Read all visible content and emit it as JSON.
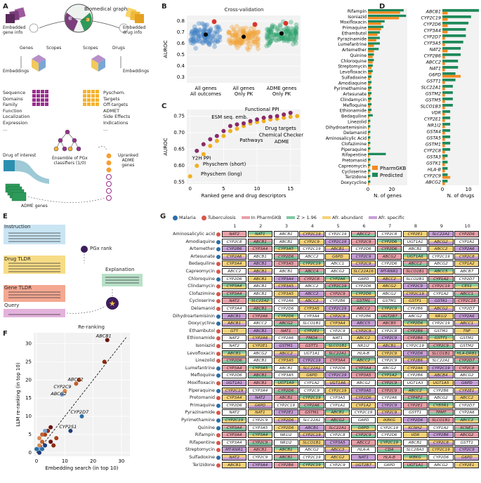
{
  "panel_labels": {
    "a": "A",
    "b": "B",
    "c": "C",
    "d": "D",
    "e": "E",
    "f": "F",
    "g": "G"
  },
  "panel_a": {
    "biomedical_graph": "Biomedical graph",
    "embedded_gene_info": "Embedded\ngene info",
    "embedded_drug_info": "Embedded\ndrug info",
    "genes": "Genes",
    "scopes_left": "Scopes",
    "scopes_right": "Scopes",
    "drugs": "Drugs",
    "embeddings_left": "Embeddings",
    "embeddings_right": "Embeddings",
    "gene_features": [
      "Sequence",
      "Domains",
      "Family",
      "Function",
      "Localization",
      "Expression",
      "..."
    ],
    "drug_features": [
      "Pyschem.",
      "Targets",
      "Off-targets",
      "ADMET",
      "Side Effects",
      "Indications",
      "..."
    ],
    "drug_of_interest": "Drug of interest",
    "ensemble": "Ensemble of PGx\nclassifiers (1/0)",
    "upranked": "Upranked\nADME\ngenes",
    "adme_genes": "ADME genes"
  },
  "panel_e": {
    "instruction": "Instruction",
    "drug_tldr": "Drug TLDR",
    "gene_tldr": "Gene TLDR",
    "query": "Query",
    "pgx_rank": "PGx rank",
    "explanation": "Explanation"
  },
  "panel_b": {
    "chart_data": {
      "type": "scatter",
      "title": "Cross-validation",
      "ylabel": "AUROC",
      "ylim": [
        0.25,
        0.85
      ],
      "yticks": [
        0.3,
        0.4,
        0.5,
        0.6,
        0.7,
        0.8
      ],
      "categories": [
        "All genes\nAll outcomes",
        "All genes\nOnly PK",
        "ADME genes\nOnly PK"
      ],
      "medians": [
        0.68,
        0.66,
        0.69
      ],
      "colors": [
        "#3b7dc4",
        "#f0a030",
        "#2ca06a"
      ]
    }
  },
  "panel_c": {
    "chart_data": {
      "type": "scatter",
      "xlabel": "Ranked gene and drug descriptors",
      "ylabel": "AUROC",
      "xlim": [
        -0.5,
        16.5
      ],
      "ylim": [
        0.545,
        0.77
      ],
      "xticks": [
        0,
        5,
        10,
        15
      ],
      "yticks": [
        0.55,
        0.6,
        0.65,
        0.7,
        0.75
      ],
      "purple_x": [
        1,
        2,
        3,
        4,
        5,
        6,
        7,
        8,
        9,
        10,
        11,
        12,
        13,
        14,
        15
      ],
      "purple_y": [
        0.645,
        0.665,
        0.68,
        0.69,
        0.705,
        0.72,
        0.725,
        0.728,
        0.735,
        0.74,
        0.745,
        0.748,
        0.75,
        0.755,
        0.76
      ],
      "orange_x": [
        0,
        1,
        2,
        3,
        4,
        5,
        6,
        7,
        8,
        9,
        10,
        11,
        12,
        13,
        14,
        15,
        16
      ],
      "orange_y": [
        0.568,
        0.6,
        0.635,
        0.66,
        0.675,
        0.69,
        0.705,
        0.712,
        0.72,
        0.728,
        0.732,
        0.735,
        0.74,
        0.742,
        0.745,
        0.748,
        0.75
      ],
      "annotations": [
        "Functional PPI",
        "ESM seq. emb.",
        "Drug targets",
        "Chemical Checker",
        "Pathways",
        "ADME",
        "Y2H PPI",
        "Physchem (short)",
        "Physchem (long)"
      ]
    }
  },
  "panel_d": {
    "chart_data": {
      "type": "bar",
      "legend": [
        "PharmGKB",
        "Predicted"
      ],
      "colors": [
        "#f28a1e",
        "#1e8a5a"
      ],
      "left_xlabel": "N. of genes",
      "right_xlabel": "N. of drugs",
      "left_xticks": [
        0,
        20
      ],
      "right_xticks": [
        0,
        10
      ],
      "left_xmax": 33,
      "right_xmax": 14,
      "drugs": [
        "Rifampin",
        "Isoniazid",
        "Moxifloxacin",
        "Primaquine",
        "Ethambutol",
        "Pyrazinamide",
        "Lumefantrine",
        "Artemether",
        "Quinine",
        "Chloroquine",
        "Streptomycin",
        "Levofloxacin",
        "Sulfadoxine",
        "Amodiaquine",
        "Pyrimethamine",
        "Artesunate",
        "Clindamycin",
        "Mefloquine",
        "Ethionamide",
        "Bedaquiline",
        "Linezolid",
        "Dihydroartemisinin",
        "Delamanid",
        "Aminosalicylic Acid",
        "Clofazimine",
        "Piperaquine",
        "Rifapentine",
        "Pretomanid",
        "Capreomycin",
        "Cycloserine",
        "Terizidone",
        "Doxycycline"
      ],
      "drug_pharmgkb": [
        27,
        26,
        11,
        11,
        8,
        7,
        5,
        5,
        4,
        4,
        3,
        3,
        2,
        2,
        2,
        2,
        2,
        2,
        2,
        1,
        1,
        1,
        1,
        1,
        1,
        1,
        1,
        1,
        1,
        1,
        1,
        1
      ],
      "drug_predicted": [
        30,
        32,
        14,
        13,
        10,
        10,
        10,
        9,
        5,
        5,
        4,
        4,
        3,
        3,
        3,
        3,
        3,
        3,
        3,
        4,
        2,
        2,
        2,
        2,
        2,
        2,
        15,
        2,
        2,
        2,
        2,
        2
      ],
      "genes": [
        "ABCB1",
        "CYP2C19",
        "CYP2D6",
        "CYP3A4",
        "CYP2D7",
        "CYP3A5",
        "NAT2",
        "CYP2B6",
        "ABCC2",
        "NAT1",
        "G6PD",
        "GSTT1",
        "SLC22A1",
        "GSTM2",
        "GSTM5",
        "SLCO1B3",
        "VDR",
        "CYP2E1",
        "NR1I2",
        "GSTA4",
        "GSTA5",
        "GSTM1",
        "CYP2C8",
        "GSTA3",
        "GSTK1",
        "HLA-B",
        "CYP2C9",
        "ABCG2"
      ],
      "gene_pharmgkb": [
        2,
        2,
        2,
        2,
        1,
        1,
        2,
        1,
        1,
        1,
        7,
        1,
        1,
        1,
        1,
        1,
        1,
        1,
        1,
        1,
        1,
        1,
        1,
        1,
        1,
        1,
        3,
        1
      ],
      "gene_predicted": [
        14,
        11,
        10,
        9,
        9,
        8,
        7,
        7,
        6,
        6,
        5,
        5,
        4,
        4,
        4,
        4,
        3,
        3,
        3,
        3,
        3,
        3,
        3,
        2,
        2,
        2,
        2,
        2
      ]
    }
  },
  "panel_f": {
    "chart_data": {
      "type": "scatter",
      "title": "Re-ranking",
      "xlabel": "Embedding search (in top 10)",
      "ylabel": "LLM re-ranking (in top 10)",
      "xlim": [
        -1,
        33
      ],
      "ylim": [
        -1,
        33
      ],
      "xticks": [
        0,
        10,
        20,
        30
      ],
      "yticks": [
        0,
        5,
        10,
        15,
        20,
        25,
        30
      ],
      "points": [
        [
          25,
          31
        ],
        [
          24,
          25
        ],
        [
          15,
          20
        ],
        [
          14,
          19
        ],
        [
          10,
          17
        ],
        [
          9,
          16
        ],
        [
          16,
          10
        ],
        [
          12,
          6
        ],
        [
          5,
          7
        ],
        [
          4,
          6
        ],
        [
          3,
          5
        ],
        [
          2,
          3
        ],
        [
          1,
          2
        ],
        [
          1,
          1
        ],
        [
          2,
          1
        ],
        [
          3,
          2
        ],
        [
          5,
          3
        ],
        [
          6,
          2
        ],
        [
          7,
          4
        ],
        [
          2,
          5
        ],
        [
          1,
          4
        ],
        [
          3,
          6
        ],
        [
          0,
          1
        ],
        [
          1,
          0
        ]
      ],
      "labels": [
        [
          "ABCB1",
          25,
          31
        ],
        [
          "ABCC2",
          15,
          19
        ],
        [
          "CYP2C9",
          10,
          17
        ],
        [
          "ABCG2",
          9,
          15
        ],
        [
          "CYP2D7",
          16,
          10
        ],
        [
          "CYP2S1",
          12,
          6
        ]
      ]
    }
  },
  "panel_g": {
    "legend": [
      "Malaria",
      "Tuberculosis",
      "In PharmGKB",
      "Z > 1.96",
      "Afr. abundant",
      "Afr. specific"
    ],
    "columns": [
      "1",
      "2",
      "3",
      "4",
      "5",
      "6",
      "7",
      "8",
      "9",
      "10"
    ],
    "rows": [
      {
        "drug": "Aminosalicylic acid",
        "d": "T",
        "genes": [
          "NAT2",
          "NAT1",
          "ABCB1",
          "CYP2C19",
          "CYP2C19",
          "ABCC2",
          "CYP2C8",
          "CYP2E1",
          "SLC22A1",
          "CYP2D6"
        ]
      },
      {
        "drug": "Amodiaquine",
        "d": "M",
        "genes": [
          "CYP2C8",
          "ABCB1",
          "ABCB1",
          "CYP2C9",
          "CYP2C19",
          "CYP2C9",
          "CYP2D6",
          "UGT1A1",
          "ABCG2",
          "CYP1A1"
        ]
      },
      {
        "drug": "Artemether",
        "d": "M",
        "genes": [
          "CYP2B6",
          "CYP3A4",
          "CYP3A5",
          "CYP2C19",
          "ABCB1",
          "CYP2D6",
          "CYP2D6",
          "ABCB1",
          "ABCC2",
          "CYP2A6"
        ]
      },
      {
        "drug": "Artesunate",
        "d": "M",
        "genes": [
          "CYP2A6",
          "ABCB1",
          "CYP2D6",
          "ABCC2",
          "G6PD",
          "CYP2C9",
          "ABCG2",
          "UGT1A6",
          "CYP2C19",
          "CYP2C8"
        ]
      },
      {
        "drug": "Bedaquiline",
        "d": "T",
        "genes": [
          "CYP3A4",
          "ABCB1",
          "CYP3A5",
          "CYP2C19",
          "ABCC1",
          "CYP2C9",
          "CYP2D6",
          "ABCC2",
          "ABCG2",
          "CYP1A2"
        ]
      },
      {
        "drug": "Capreomycin",
        "d": "T",
        "genes": [
          "ABCC2",
          "ABCB1",
          "ABCB1",
          "ABCC4",
          "ABCG2",
          "SLC22A16",
          "MT-RNR1",
          "SLCO1B1",
          "ABCC5",
          "ABCB7"
        ]
      },
      {
        "drug": "Chloroquine",
        "d": "M",
        "genes": [
          "CYP2D6",
          "ABCB1",
          "CYP3A4",
          "CYP2C8",
          "CYP2A6",
          "G6PD",
          "ABCC2",
          "SLCO2B1",
          "CYP1A2",
          "CYP2D7"
        ]
      },
      {
        "drug": "Clindamycin",
        "d": "T",
        "genes": [
          "CYP3A4",
          "ABCB1",
          "CYP3A5",
          "ABCC2",
          "CYP2C19",
          "CYP2D6",
          "ABCG2",
          "CYP2C9",
          "CYP2C19",
          "CES1"
        ]
      },
      {
        "drug": "Clofazimine",
        "d": "T",
        "genes": [
          "CYP3A4",
          "ABCB1",
          "CYP3A5",
          "ABCC2",
          "CYP2C9",
          "CYP2D6",
          "ABCG2",
          "CYP2C19",
          "CYP1A2",
          "ABCC1"
        ]
      },
      {
        "drug": "Cycloserine",
        "d": "T",
        "genes": [
          "NAT2",
          "SLC22A2",
          "CYP2A6",
          "ABCC2",
          "CYP2B6",
          "GSTM1",
          "GSTM1",
          "GSTP1",
          "GSTA1",
          "CYP2C19"
        ]
      },
      {
        "drug": "Delamanid",
        "d": "T",
        "genes": [
          "CYP3A4",
          "ABCB1",
          "CYP2D6",
          "CYP3A5",
          "CYP2C19",
          "ABCC2",
          "CYP2C9",
          "CYP2B6",
          "ABCG2",
          "CYP2D7"
        ]
      },
      {
        "drug": "Dihydroartemisinin",
        "d": "M",
        "genes": [
          "ABCB1",
          "CYP2A6",
          "CYP2D6",
          "CYP3A4",
          "CYP2C9",
          "CYP2B6",
          "UGT2B7",
          "ABCG2",
          "NR1I2",
          "CYP2A6"
        ]
      },
      {
        "drug": "Doxycycline",
        "d": "M",
        "genes": [
          "ABCB1",
          "ABCC2",
          "ABCG2",
          "SLCO1B1",
          "CYP3A4",
          "ABCC5",
          "ABCB5",
          "CYP2D6",
          "CYP2C19",
          "ABCC1"
        ]
      },
      {
        "drug": "Ethambutol",
        "d": "T",
        "genes": [
          "GTT",
          "ABCB1",
          "NAT1",
          "CYP2E1",
          "CYP2C9",
          "CYP2C9",
          "CYP2C8",
          "CYP2B6",
          "GSTM1",
          "TNF"
        ]
      },
      {
        "drug": "Ethionamide",
        "d": "T",
        "genes": [
          "NAT2",
          "CYP2A6",
          "CYP2A6",
          "FMO4",
          "NAT1",
          "ABCC2",
          "CYP2C9",
          "CYP2B6",
          "GSTT1",
          "GSTM1"
        ]
      },
      {
        "drug": "Isoniazid",
        "d": "T",
        "genes": [
          "NAT2",
          "CYP2E1",
          "GSTM1",
          "GSTT1",
          "SLCO1B1",
          "NR1I2",
          "ABCB1",
          "CYP2C19",
          "CYP2C9",
          "GSTM2"
        ]
      },
      {
        "drug": "Levofloxacin",
        "d": "T",
        "genes": [
          "ABCB1",
          "ABCG2",
          "ABCC2",
          "UGT1A1",
          "SLC22A1",
          "HLA-B",
          "CYP2C9",
          "CYP2D6",
          "SLCO1B1",
          "HLA-DRB1"
        ]
      },
      {
        "drug": "Linezolid",
        "d": "T",
        "genes": [
          "CYP2D6",
          "ABCB1",
          "CYP3A5",
          "CYP2C19",
          "CYP3A4",
          "ABCC2",
          "CYP2C9",
          "CYP2B6",
          "SLC22A1",
          "CYP2D7"
        ]
      },
      {
        "drug": "Lumefantrine",
        "d": "M",
        "genes": [
          "CYP3A4",
          "CYP3A5",
          "ABCB1",
          "SLC22A1",
          "CYP2D6",
          "CYP3A4",
          "ABCG2",
          "CYP2A6",
          "CYP2C19",
          "CYP2C8"
        ]
      },
      {
        "drug": "Mefloquine",
        "d": "M",
        "genes": [
          "CYP2D6",
          "ABCB1",
          "CYP3A5",
          "G6PD",
          "CYP2C19",
          "CYP3A5",
          "CYP1A2",
          "CYP2B6",
          "ABCB4",
          "ABCG2"
        ]
      },
      {
        "drug": "Moxifloxacin",
        "d": "T",
        "genes": [
          "UGT1A1",
          "ABCB1",
          "UGT1A9",
          "CYP1A2",
          "UGT1A6",
          "ABCG2",
          "CYP2C9",
          "UGT1A3",
          "UGT1A5",
          "G6PD"
        ]
      },
      {
        "drug": "Piperaquine",
        "d": "M",
        "genes": [
          "CYP2C19",
          "CYP3A4",
          "CYP2D6",
          "CYP2C9",
          "CYP2C19",
          "CYP3A5",
          "CYP2C9",
          "ABCC2",
          "CYP2B6",
          "CYP2E1"
        ]
      },
      {
        "drug": "Pretomanid",
        "d": "T",
        "genes": [
          "CYP3A4",
          "NAT2",
          "ABCB1",
          "CYP2C19",
          "CYP3A5",
          "CYP2D6",
          "CYP2A6",
          "CYP4F2",
          "ABCG2",
          "ABCC2"
        ]
      },
      {
        "drug": "Primaquine",
        "d": "M",
        "genes": [
          "CYP2D6",
          "G6PD",
          "CYP2C19",
          "CYP2A6",
          "CYP1A1",
          "CYP1A2",
          "CYP2C9",
          "CYP2E1",
          "CYB5R1",
          "CYP2D7"
        ]
      },
      {
        "drug": "Pyrazinamide",
        "d": "T",
        "genes": [
          "NAT2",
          "NAT1",
          "CYP2E1",
          "GSTM1",
          "ABCB1",
          "CYP2C19",
          "CYP2C9",
          "GSTT1",
          "TPMT",
          "CYP2A6"
        ]
      },
      {
        "drug": "Pyrimethamine",
        "d": "M",
        "genes": [
          "CYP2C19",
          "CYP2C9",
          "CYP2D6",
          "SLC22A1",
          "ABCG2",
          "G6PD",
          "IKBKG",
          "CYP2D6",
          "SLCO1B1",
          "ABCC2"
        ]
      },
      {
        "drug": "Quinine",
        "d": "M",
        "genes": [
          "CYP3A4",
          "CYP3A5",
          "CYP2D6",
          "ABCB1",
          "SLC22A1",
          "G6PD",
          "CYP2C19",
          "KCNH2",
          "CYP1A2",
          "KCNE1"
        ]
      },
      {
        "drug": "Rifampin",
        "d": "T",
        "genes": [
          "CYP3A4",
          "CYP3A4",
          "NR1I2",
          "CYP2C19",
          "CYP2C8",
          "CYP2C9",
          "CYP2D6",
          "VDR",
          "CYP2B6",
          "ABCG2"
        ]
      },
      {
        "drug": "Rifapentine",
        "d": "T",
        "genes": [
          "CYP3A4",
          "CYP2C9",
          "NR1I2",
          "SLCO1B1",
          "CYP3A5",
          "ABCC2",
          "CYP2C19",
          "ABCB1",
          "CYP2C8",
          "GSTT1"
        ]
      },
      {
        "drug": "Streptomycin",
        "d": "T",
        "genes": [
          "MT-RNR1",
          "ABCB1",
          "ABCB1",
          "ABCG2",
          "ABCC3",
          "HLA-A",
          "CDA",
          "SLC28A3",
          "CYP2C19",
          "CYP2C9"
        ]
      },
      {
        "drug": "Sulfadoxine",
        "d": "M",
        "genes": [
          "NAT2",
          "CYP2C9",
          "ABCB1",
          "CYP2C19",
          "ABCG2",
          "NAT1",
          "HLA-B",
          "IKBKG",
          "CYP2D6",
          "G6PD"
        ]
      },
      {
        "drug": "Terizidone",
        "d": "T",
        "genes": [
          "ABCB1",
          "CYP3A4",
          "CYP2B6",
          "CYP2C19",
          "CYP2C9",
          "UGT2B7",
          "G6PD",
          "UGT1A1",
          "ABCG2",
          "CYP2E1"
        ]
      }
    ]
  }
}
